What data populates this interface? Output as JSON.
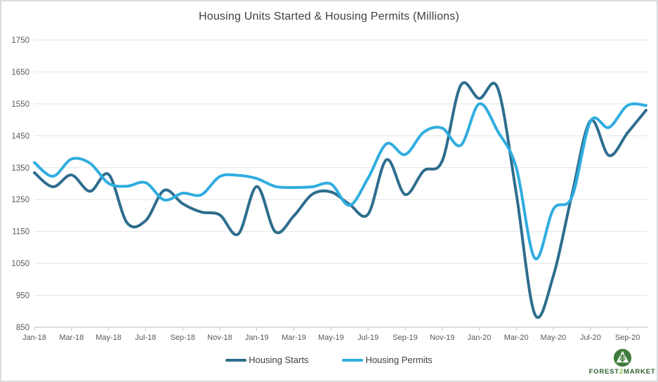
{
  "chart_data": {
    "type": "line",
    "title": "Housing Units Started & Housing Permits (Millions)",
    "smooth": true,
    "grid": "horizontal",
    "legend_position": "bottom",
    "ylim": [
      850,
      1750
    ],
    "ytick_step": 100,
    "y_tick_labels": [
      "1750",
      "1650",
      "1550",
      "1450",
      "1350",
      "1250",
      "1150",
      "1050",
      "950",
      "850"
    ],
    "x": [
      "Jan-18",
      "Feb-18",
      "Mar-18",
      "Apr-18",
      "May-18",
      "Jun-18",
      "Jul-18",
      "Aug-18",
      "Sep-18",
      "Oct-18",
      "Nov-18",
      "Dec-18",
      "Jan-19",
      "Feb-19",
      "Mar-19",
      "Apr-19",
      "May-19",
      "Jun-19",
      "Jul-19",
      "Aug-19",
      "Sep-19",
      "Oct-19",
      "Nov-19",
      "Dec-19",
      "Jan-20",
      "Feb-20",
      "Mar-20",
      "Apr-20",
      "May-20",
      "Jun-20",
      "Jul-20",
      "Aug-20",
      "Sep-20",
      "Oct-20"
    ],
    "x_tick_labels": [
      "Jan-18",
      "Mar-18",
      "May-18",
      "Jul-18",
      "Sep-18",
      "Nov-18",
      "Jan-19",
      "Mar-19",
      "May-19",
      "Jul-19",
      "Sep-19",
      "Nov-19",
      "Jan-20",
      "Mar-20",
      "May-20",
      "Jul-20",
      "Sep-20"
    ],
    "series": [
      {
        "name": "Housing Starts",
        "color": "#2e6d8e",
        "values": [
          1334,
          1290,
          1327,
          1276,
          1329,
          1177,
          1184,
          1279,
          1237,
          1211,
          1202,
          1142,
          1291,
          1149,
          1199,
          1267,
          1274,
          1235,
          1204,
          1375,
          1266,
          1340,
          1371,
          1608,
          1567,
          1599,
          1269,
          891,
          1011,
          1265,
          1497,
          1388,
          1459,
          1530
        ]
      },
      {
        "name": "Housing Permits",
        "color": "#30ade0",
        "values": [
          1366,
          1323,
          1377,
          1364,
          1301,
          1292,
          1303,
          1249,
          1270,
          1265,
          1322,
          1326,
          1316,
          1291,
          1288,
          1290,
          1299,
          1232,
          1317,
          1425,
          1391,
          1461,
          1474,
          1420,
          1550,
          1464,
          1350,
          1066,
          1220,
          1258,
          1495,
          1476,
          1545,
          1545
        ]
      }
    ]
  },
  "colors": {
    "gridline": "#e2e2e2",
    "axis": "#c9c9c9",
    "axis_text": "#595959",
    "title_text": "#3f3f3f",
    "frame_border": "#d8dcdf"
  },
  "logo": {
    "icon": "tree-in-circle-icon",
    "text_part1": "FOREST",
    "text_part2": "2",
    "text_part3": "MARKET",
    "circle_color": "#3e7b3a",
    "text_color": "#2e5f2e",
    "accent_color": "#86b841"
  }
}
